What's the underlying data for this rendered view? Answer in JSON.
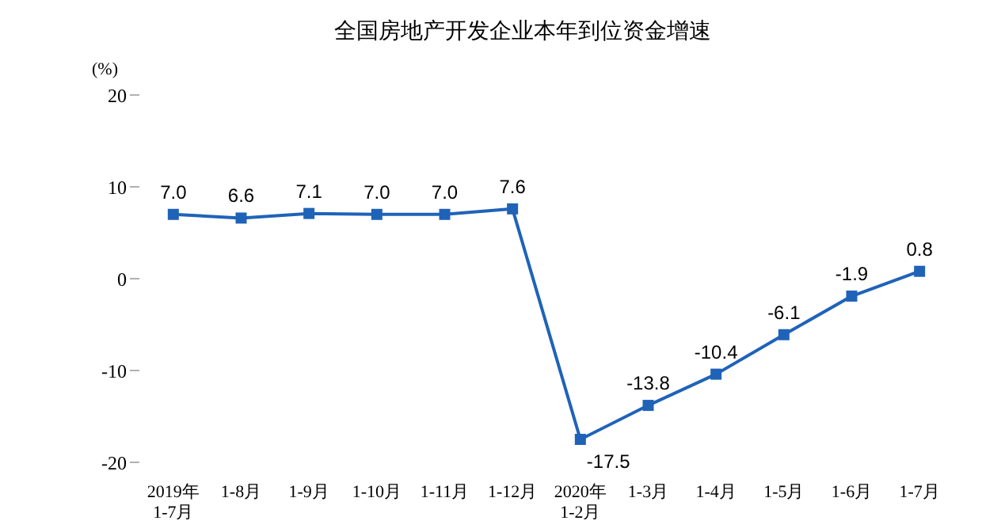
{
  "chart_data": {
    "type": "line",
    "title": "全国房地产开发企业本年到位资金增速",
    "ylabel": "(%)",
    "categories": [
      "2019年\n1-7月",
      "1-8月",
      "1-9月",
      "1-10月",
      "1-11月",
      "1-12月",
      "2020年\n1-2月",
      "1-3月",
      "1-4月",
      "1-5月",
      "1-6月",
      "1-7月"
    ],
    "series": [
      {
        "color": "#1f63b8",
        "values": [
          7.0,
          6.6,
          7.1,
          7.0,
          7.0,
          7.6,
          -17.5,
          -13.8,
          -10.4,
          -6.1,
          -1.9,
          0.8
        ],
        "value_labels": [
          "7.0",
          "6.6",
          "7.1",
          "7.0",
          "7.0",
          "7.6",
          "-17.5",
          "-13.8",
          "-10.4",
          "-6.1",
          "-1.9",
          "0.8"
        ]
      }
    ],
    "ylim": [
      -20,
      20
    ],
    "yticks": [
      -20,
      -10,
      0,
      10,
      20
    ],
    "marker": "square",
    "line_style": "solid"
  }
}
